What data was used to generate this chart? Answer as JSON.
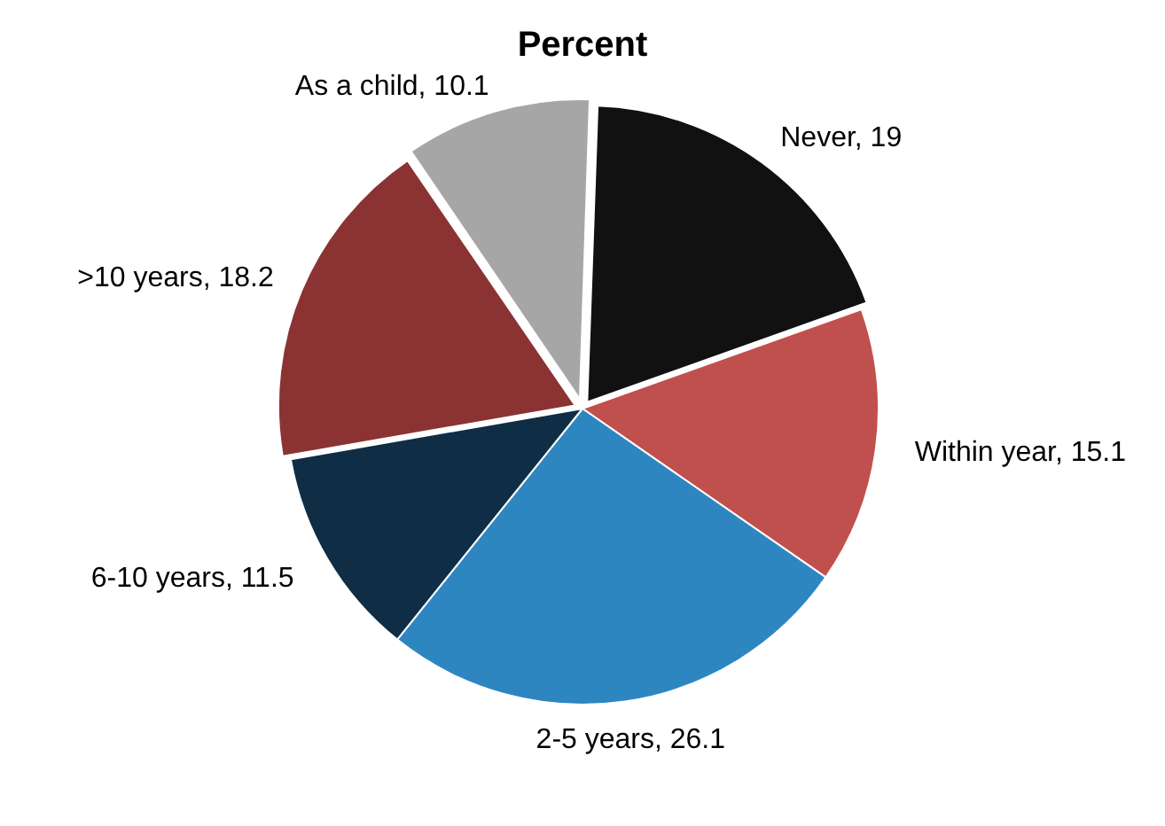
{
  "chart_data": {
    "type": "pie",
    "title": "Percent",
    "categories": [
      "Never, 19",
      "Within year, 15.1",
      "2-5 years, 26.1",
      "6-10 years, 11.5",
      ">10 years, 18.2",
      "As a child, 10.1"
    ],
    "values": [
      19,
      15.1,
      26.1,
      11.5,
      18.2,
      10.1
    ],
    "colors": [
      "#111111",
      "#c0504d",
      "#2e86c1",
      "#0f2d45",
      "#8b3333",
      "#a6a6a6"
    ],
    "legend": false
  }
}
